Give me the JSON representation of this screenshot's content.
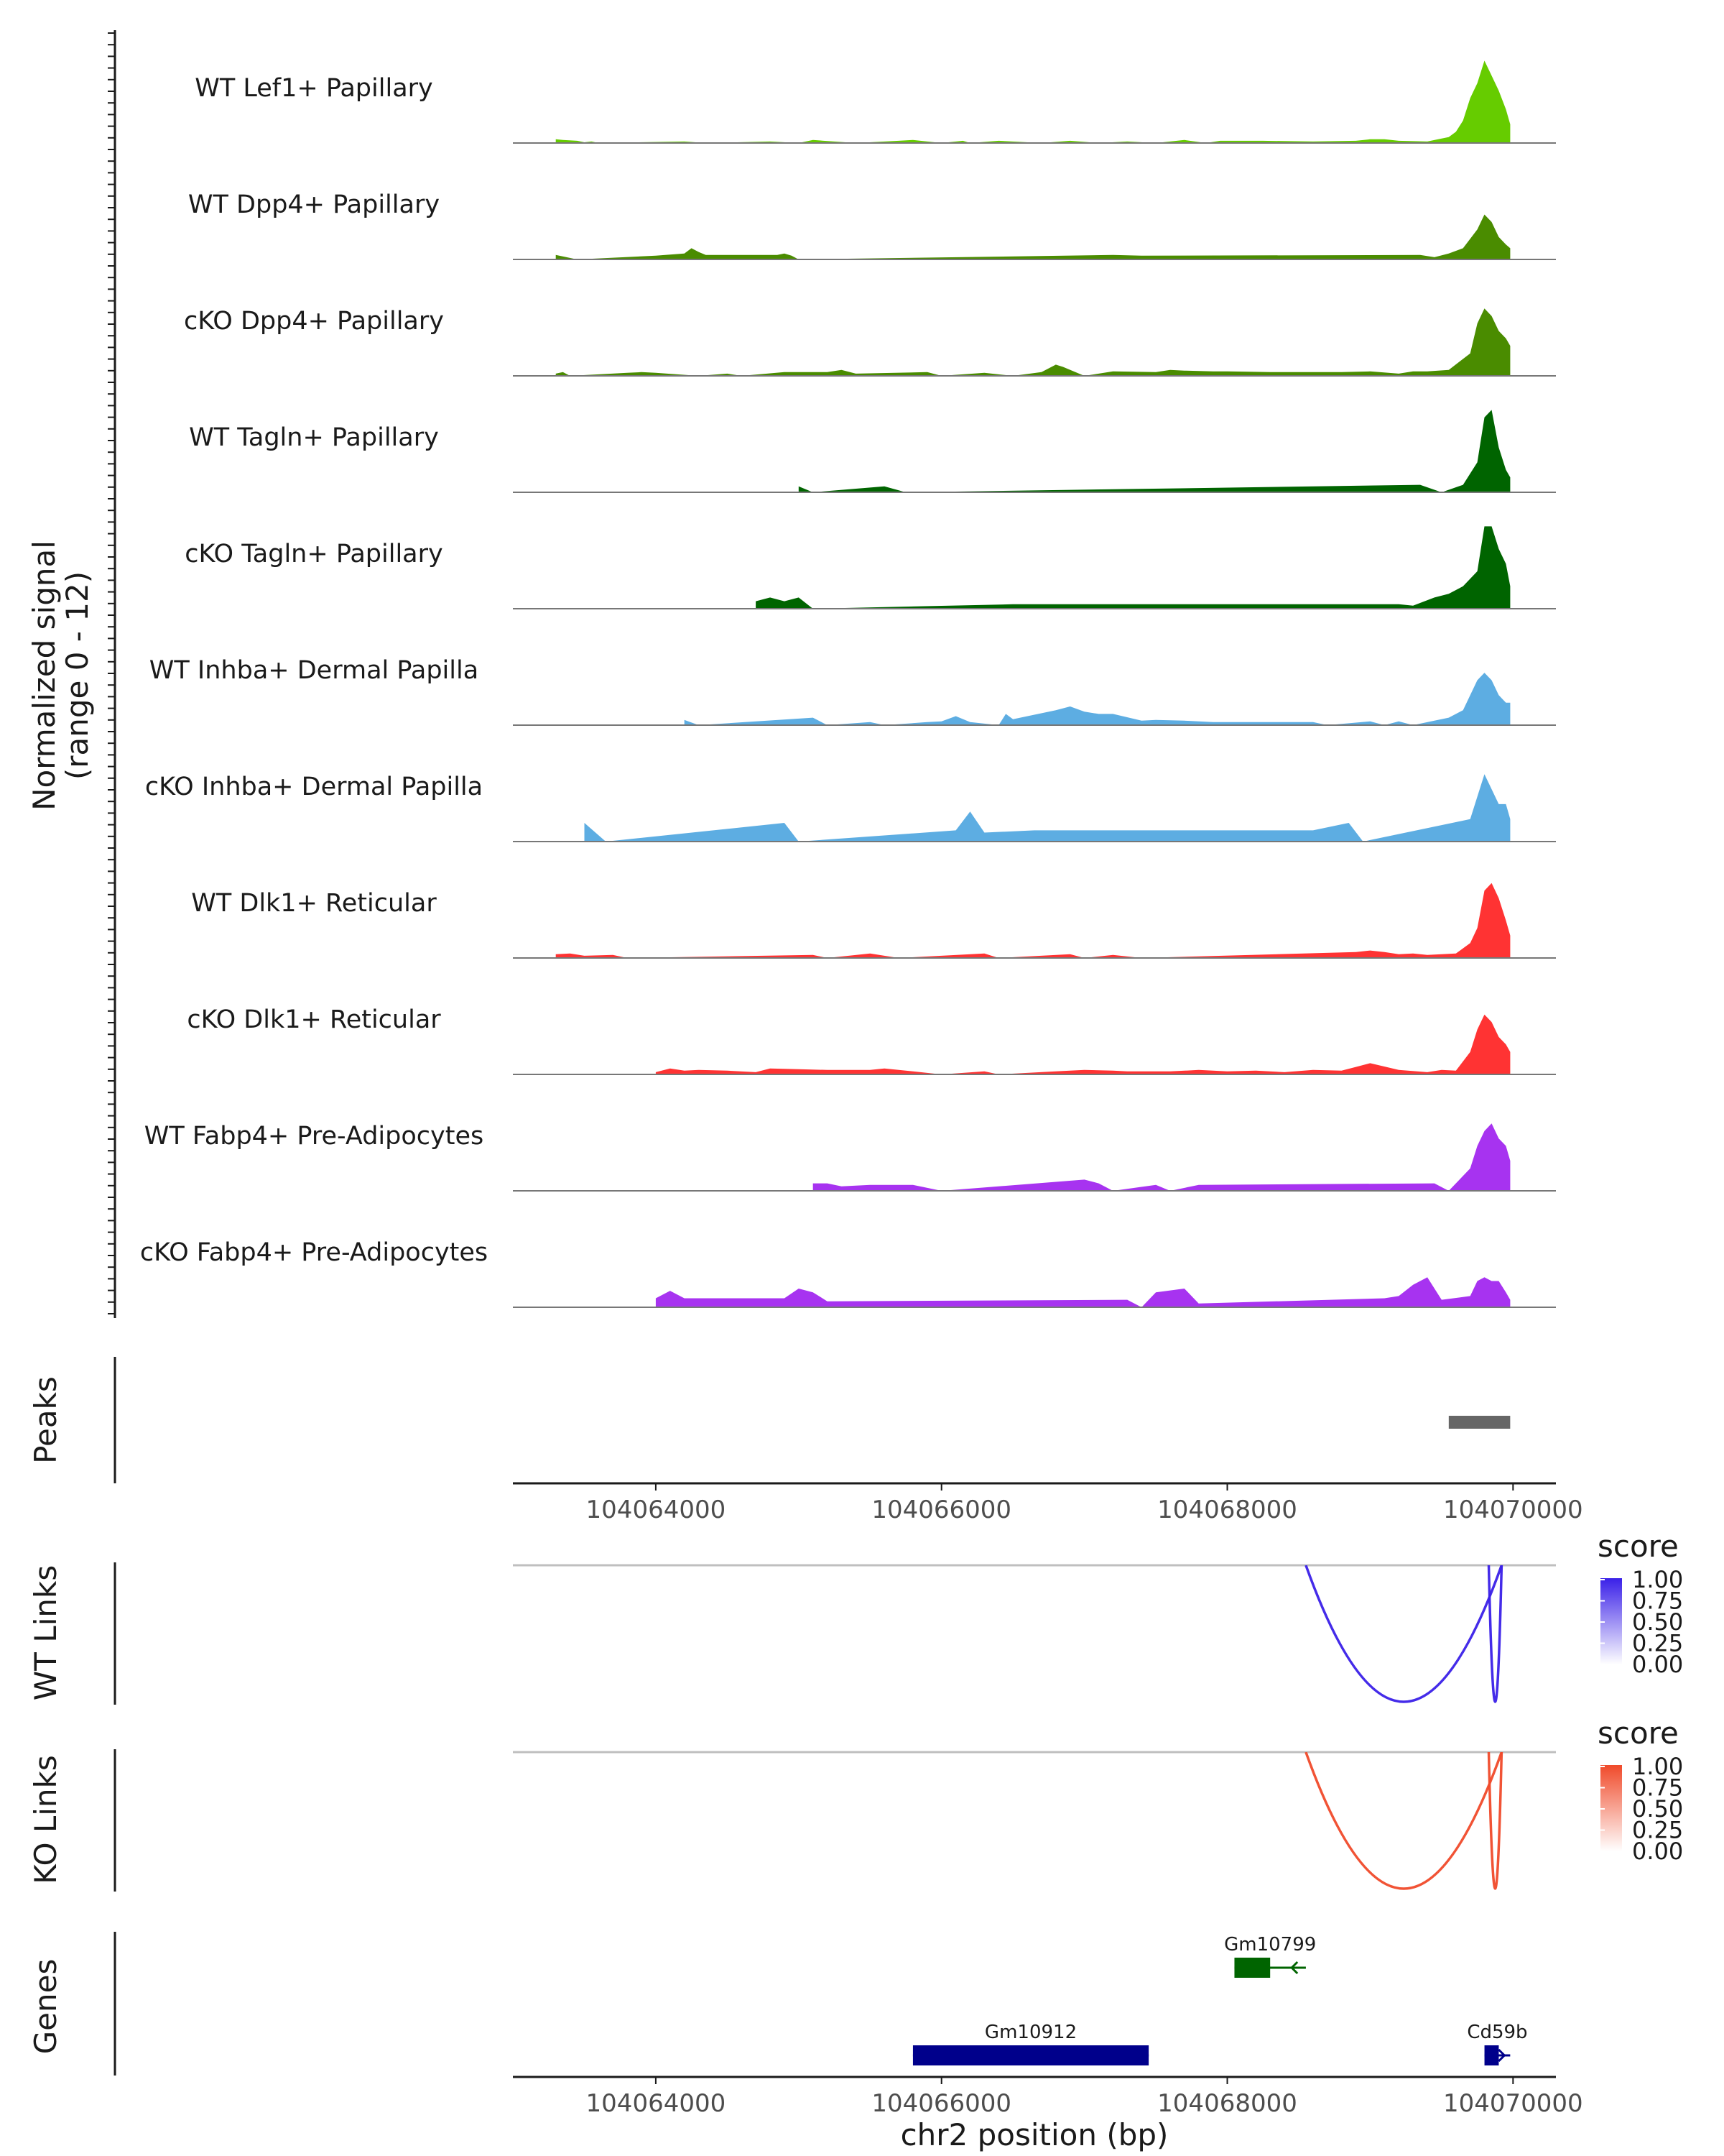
{
  "chart_data": {
    "type": "area",
    "title": "",
    "chromosome": "chr2",
    "xlabel": "chr2 position (bp)",
    "x_range": [
      104063000,
      104070300
    ],
    "x_ticks": [
      104064000,
      104066000,
      104068000,
      104070000
    ],
    "x_tick_labels": [
      "104064000",
      "104066000",
      "104068000",
      "104070000"
    ],
    "coverage": {
      "ylabel_line1": "Normalized signal",
      "ylabel_line2": "(range 0 - 12)",
      "ylim": [
        0,
        12
      ],
      "tracks": [
        {
          "name": "WT Lef1+ Papillary",
          "color": "#66CC00",
          "x": [
            104063300,
            104063350,
            104063450,
            104063500,
            104063550,
            104063600,
            104064200,
            104064350,
            104064800,
            104065000,
            104065100,
            104065400,
            104065700,
            104065800,
            104066000,
            104066150,
            104066200,
            104066400,
            104066700,
            104066900,
            104067100,
            104067300,
            104067500,
            104067700,
            104067850,
            104067950,
            104068250,
            104068600,
            104068900,
            104069000,
            104069100,
            104069200,
            104069400,
            104069500,
            104069550,
            104069600,
            104069650,
            104069700,
            104069750,
            104069800,
            104069850,
            104069900,
            104069950,
            104069980
          ],
          "y": [
            0.5,
            0.4,
            0.3,
            0.1,
            0.2,
            0,
            0.2,
            0,
            0.2,
            0,
            0.4,
            0,
            0.3,
            0.4,
            0,
            0.3,
            0,
            0.3,
            0,
            0.3,
            0,
            0.2,
            0,
            0.4,
            0,
            0.3,
            0.3,
            0.2,
            0.3,
            0.5,
            0.5,
            0.3,
            0.2,
            0.6,
            0.8,
            1.5,
            3,
            6,
            8,
            11,
            9,
            7,
            4.5,
            2.5
          ]
        },
        {
          "name": "WT Dpp4+ Papillary",
          "color": "#4A8C00",
          "x": [
            104063300,
            104063450,
            104064000,
            104064200,
            104064250,
            104064300,
            104064350,
            104064850,
            104064900,
            104064950,
            104065000,
            104067200,
            104067400,
            104069350,
            104069450,
            104069550,
            104069650,
            104069750,
            104069800,
            104069850,
            104069900,
            104069950,
            104069980
          ],
          "y": [
            0.6,
            0,
            0.5,
            0.8,
            1.5,
            1,
            0.6,
            0.6,
            0.8,
            0.5,
            0,
            0.6,
            0.5,
            0.6,
            0.3,
            0.8,
            1.5,
            4,
            6,
            5,
            3,
            2,
            1.5
          ]
        },
        {
          "name": "cKO Dpp4+ Papillary",
          "color": "#4A8C00",
          "x": [
            104063300,
            104063350,
            104063400,
            104063800,
            104063900,
            104064000,
            104064300,
            104064500,
            104064600,
            104064900,
            104065200,
            104065300,
            104065400,
            104065900,
            104066000,
            104066300,
            104066500,
            104066700,
            104066800,
            104066850,
            104067000,
            104067200,
            104067500,
            104067600,
            104067700,
            104067900,
            104068000,
            104068300,
            104068500,
            104068600,
            104068800,
            104069000,
            104069200,
            104069300,
            104069400,
            104069550,
            104069700,
            104069750,
            104069800,
            104069850,
            104069900,
            104069950,
            104069980
          ],
          "y": [
            0.3,
            0.5,
            0,
            0.4,
            0.5,
            0.4,
            0,
            0.3,
            0,
            0.5,
            0.5,
            0.8,
            0.3,
            0.5,
            0,
            0.4,
            0,
            0.5,
            1.5,
            1.2,
            0,
            0.6,
            0.5,
            0.8,
            0.7,
            0.6,
            0.6,
            0.5,
            0.5,
            0.5,
            0.5,
            0.6,
            0.3,
            0.6,
            0.6,
            0.8,
            3,
            7,
            9,
            8,
            6,
            5,
            4
          ]
        },
        {
          "name": "WT Tagln+ Papillary",
          "color": "#006400",
          "x": [
            104065000,
            104065100,
            104065600,
            104065750,
            104069350,
            104069500,
            104069650,
            104069750,
            104069800,
            104069850,
            104069900,
            104069950,
            104069980
          ],
          "y": [
            0.8,
            0,
            0.8,
            0,
            1,
            0,
            1,
            4,
            10,
            11,
            6,
            3,
            2
          ]
        },
        {
          "name": "cKO Tagln+ Papillary",
          "color": "#006400",
          "x": [
            104064700,
            104064800,
            104064900,
            104065000,
            104065100,
            104066500,
            104066600,
            104066800,
            104066900,
            104067000,
            104067100,
            104067200,
            104067400,
            104069200,
            104069300,
            104069450,
            104069550,
            104069650,
            104069750,
            104069800,
            104069850,
            104069900,
            104069950,
            104069980
          ],
          "y": [
            1,
            1.5,
            1,
            1.5,
            0,
            0.6,
            0.6,
            0.6,
            0.6,
            0.6,
            0.6,
            0.6,
            0.6,
            0.6,
            0.4,
            1.5,
            2,
            3,
            5,
            11,
            11,
            8,
            6,
            3
          ]
        },
        {
          "name": "WT Inhba+ Dermal Papilla",
          "color": "#5DADE2",
          "x": [
            104064200,
            104064300,
            104065100,
            104065200,
            104065500,
            104065600,
            104065900,
            104066000,
            104066100,
            104066200,
            104066400,
            104066450,
            104066500,
            104066800,
            104066900,
            104067000,
            104067100,
            104067200,
            104067400,
            104067500,
            104067700,
            104067900,
            104068600,
            104068700,
            104069000,
            104069100,
            104069200,
            104069300,
            104069450,
            104069550,
            104069650,
            104069700,
            104069750,
            104069800,
            104069850,
            104069900,
            104069950,
            104069980
          ],
          "y": [
            0.7,
            0,
            1,
            0,
            0.4,
            0,
            0.4,
            0.5,
            1.2,
            0.4,
            0,
            1.5,
            0.8,
            2,
            2.5,
            1.8,
            1.5,
            1.5,
            0.6,
            0.7,
            0.6,
            0.4,
            0.4,
            0,
            0.5,
            0,
            0.5,
            0,
            0.6,
            1,
            2,
            4,
            6,
            7,
            6,
            4,
            3,
            3
          ]
        },
        {
          "name": "cKO Inhba+ Dermal Papilla",
          "color": "#5DADE2",
          "x": [
            104063500,
            104063650,
            104064900,
            104065000,
            104066100,
            104066200,
            104066300,
            104066650,
            104066800,
            104067300,
            104067400,
            104067600,
            104067700,
            104068100,
            104068200,
            104068500,
            104068600,
            104068850,
            104068950,
            104069700,
            104069750,
            104069800,
            104069850,
            104069900,
            104069950,
            104069980
          ],
          "y": [
            2.5,
            0,
            2.5,
            0,
            1.5,
            4,
            1.2,
            1.5,
            1.5,
            1.5,
            1.5,
            1.5,
            1.5,
            1.5,
            1.5,
            1.5,
            1.5,
            2.5,
            0,
            3,
            6,
            9,
            7,
            5,
            5,
            3
          ]
        },
        {
          "name": "WT Dlk1+ Reticular",
          "color": "#FF3333",
          "x": [
            104063300,
            104063400,
            104063500,
            104063700,
            104063800,
            104065100,
            104065200,
            104065500,
            104065700,
            104066300,
            104066400,
            104066900,
            104067000,
            104067200,
            104067400,
            104068900,
            104069000,
            104069100,
            104069200,
            104069300,
            104069400,
            104069600,
            104069700,
            104069750,
            104069800,
            104069850,
            104069900,
            104069950,
            104069980
          ],
          "y": [
            0.5,
            0.6,
            0.3,
            0.4,
            0,
            0.4,
            0,
            0.6,
            0,
            0.6,
            0,
            0.5,
            0,
            0.4,
            0,
            0.8,
            1,
            0.8,
            0.5,
            0.6,
            0.4,
            0.6,
            2,
            4,
            9,
            10,
            8,
            5,
            3
          ]
        },
        {
          "name": "cKO Dlk1+ Reticular",
          "color": "#FF3333",
          "x": [
            104064000,
            104064100,
            104064200,
            104064300,
            104064500,
            104064700,
            104064800,
            104065000,
            104065200,
            104065500,
            104065600,
            104065800,
            104066000,
            104066300,
            104066400,
            104066800,
            104067000,
            104067200,
            104067300,
            104067600,
            104067800,
            104068000,
            104068200,
            104068400,
            104068600,
            104068800,
            104068900,
            104069000,
            104069200,
            104069400,
            104069500,
            104069600,
            104069700,
            104069750,
            104069800,
            104069850,
            104069900,
            104069950,
            104069980
          ],
          "y": [
            0.3,
            0.8,
            0.5,
            0.6,
            0.5,
            0.3,
            0.8,
            0.7,
            0.6,
            0.6,
            0.8,
            0.4,
            0,
            0.4,
            0,
            0.4,
            0.6,
            0.5,
            0.4,
            0.4,
            0.6,
            0.4,
            0.5,
            0.3,
            0.6,
            0.5,
            1,
            1.5,
            0.6,
            0.3,
            0.6,
            0.5,
            3,
            6,
            8,
            7,
            5,
            4,
            3
          ]
        },
        {
          "name": "WT Fabp4+ Pre-Adipocytes",
          "color": "#A733F0",
          "x": [
            104065100,
            104065200,
            104065300,
            104065500,
            104065800,
            104066000,
            104067000,
            104067100,
            104067200,
            104067500,
            104067600,
            104067800,
            104069450,
            104069550,
            104069700,
            104069750,
            104069800,
            104069850,
            104069900,
            104069950,
            104069980
          ],
          "y": [
            1,
            1,
            0.6,
            0.8,
            0.8,
            0,
            1.5,
            1,
            0,
            0.8,
            0,
            0.8,
            1,
            0,
            3,
            6,
            8,
            9,
            7,
            6,
            4
          ]
        },
        {
          "name": "cKO Fabp4+ Pre-Adipocytes",
          "color": "#A733F0",
          "x": [
            104064000,
            104064100,
            104064200,
            104064900,
            104065000,
            104065100,
            104065200,
            104067300,
            104067400,
            104067500,
            104067700,
            104067800,
            104069100,
            104069200,
            104069300,
            104069400,
            104069500,
            104069700,
            104069750,
            104069800,
            104069850,
            104069900,
            104069950,
            104069980
          ],
          "y": [
            1.2,
            2.2,
            1.2,
            1.2,
            2.5,
            2,
            0.8,
            1,
            0,
            2,
            2.5,
            0.5,
            1.2,
            1.5,
            3,
            4,
            1,
            1.5,
            3.5,
            4,
            3.5,
            3.5,
            2,
            1
          ]
        }
      ]
    },
    "peaks": {
      "label": "Peaks",
      "regions": [
        [
          104069550,
          104069980
        ]
      ],
      "color": "#666666"
    },
    "links": [
      {
        "label": "WT Links",
        "legend_title": "score",
        "color": "#3A20E8",
        "gradient": [
          "#FFFFFF",
          "#3A20E8"
        ],
        "legend_values": [
          "1.00",
          "0.75",
          "0.50",
          "0.25",
          "0.00"
        ],
        "arcs": [
          [
            104068550,
            104069920,
            0.95
          ],
          [
            104069830,
            104069920,
            0.95
          ]
        ]
      },
      {
        "label": "KO Links",
        "legend_title": "score",
        "color": "#F04A2A",
        "gradient": [
          "#FFFFFF",
          "#F04A2A"
        ],
        "legend_values": [
          "1.00",
          "0.75",
          "0.50",
          "0.25",
          "0.00"
        ],
        "arcs": [
          [
            104068550,
            104069920,
            0.95
          ],
          [
            104069830,
            104069920,
            0.95
          ]
        ]
      }
    ],
    "genes": {
      "label": "Genes",
      "items": [
        {
          "name": "Gm10799",
          "start": 104068050,
          "end": 104068550,
          "thick_start": 104068050,
          "thick_end": 104068300,
          "strand": "-",
          "color": "#006400",
          "row": 0
        },
        {
          "name": "Gm10912",
          "start": 104065800,
          "end": 104067450,
          "thick_start": 104065800,
          "thick_end": 104067450,
          "strand": "+",
          "color": "#00008B",
          "row": 1
        },
        {
          "name": "Cd59b",
          "start": 104069800,
          "end": 104069980,
          "thick_start": 104069800,
          "thick_end": 104069900,
          "strand": "+",
          "color": "#00008B",
          "row": 1
        }
      ]
    }
  }
}
